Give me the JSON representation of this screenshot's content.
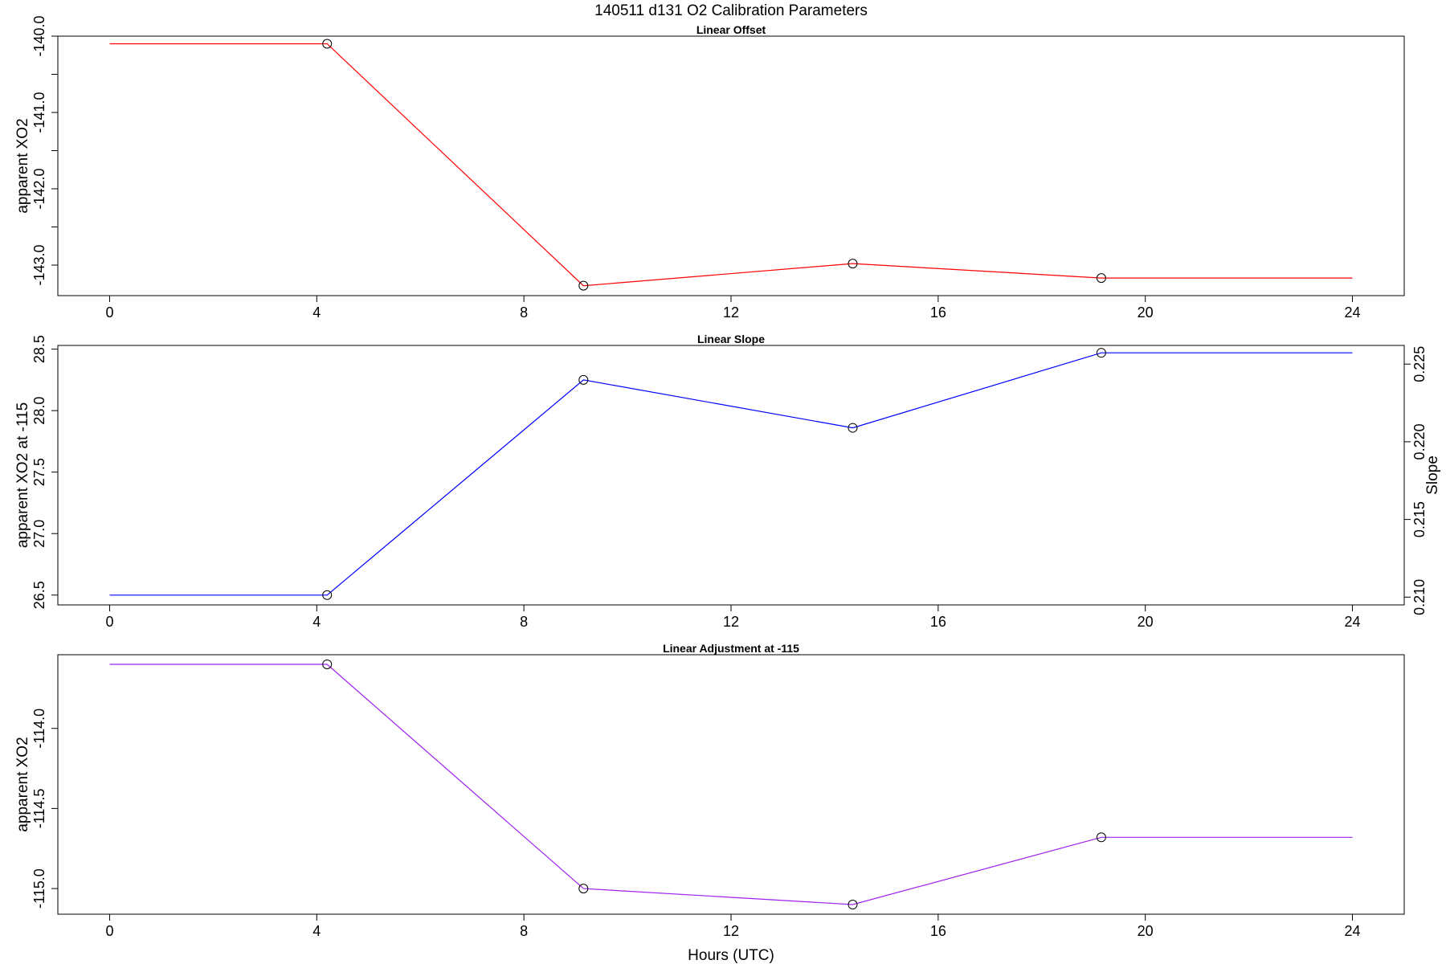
{
  "chart_data": {
    "title": "140511   d131   O2 Calibration Parameters",
    "xlabel": "Hours (UTC)",
    "xlim": [
      -1.0,
      25.0
    ],
    "xticks": [
      0,
      4,
      8,
      12,
      16,
      20,
      24
    ],
    "panels": [
      {
        "type": "line",
        "title": "Linear Offset",
        "ylabel": "apparent XO2",
        "ylim": [
          -143.4,
          -140.0
        ],
        "yticks": [
          -143.0,
          -142.5,
          -142.0,
          -141.5,
          -141.0,
          -140.5,
          -140.0
        ],
        "ytick_labels": [
          "-143.0",
          "",
          "-142.0",
          "",
          "-141.0",
          "",
          "-140.0"
        ],
        "color": "#ff0000",
        "series": [
          {
            "x": [
              0,
              4.2,
              9.15,
              14.35,
              19.15,
              24
            ],
            "y": [
              -140.1,
              -140.1,
              -143.27,
              -142.98,
              -143.17,
              -143.17
            ]
          }
        ],
        "markers_x": [
          4.2,
          9.15,
          14.35,
          19.15
        ]
      },
      {
        "type": "line",
        "title": "Linear Slope",
        "ylabel": "apparent XO2 at -115",
        "ylim": [
          26.42,
          28.53
        ],
        "yticks": [
          26.5,
          27.0,
          27.5,
          28.0,
          28.5
        ],
        "ytick_labels": [
          "26.5",
          "27.0",
          "27.5",
          "28.0",
          "28.5"
        ],
        "y2label": "Slope",
        "y2ticks": [
          0.21,
          0.215,
          0.22,
          0.225
        ],
        "y2tick_labels": [
          "0.210",
          "0.215",
          "0.220",
          "0.225"
        ],
        "color": "#0000ff",
        "series": [
          {
            "x": [
              0,
              4.2,
              9.15,
              14.35,
              19.15,
              24
            ],
            "y": [
              26.5,
              26.5,
              28.25,
              27.86,
              28.47,
              28.47
            ]
          }
        ],
        "markers_x": [
          4.2,
          9.15,
          14.35,
          19.15
        ]
      },
      {
        "type": "line",
        "title": "Linear Adjustment at -115",
        "ylabel": "apparent XO2",
        "ylim": [
          -115.16,
          -113.54
        ],
        "yticks": [
          -115.0,
          -114.5,
          -114.0
        ],
        "ytick_labels": [
          "-115.0",
          "-114.5",
          "-114.0"
        ],
        "color": "#a020f0",
        "series": [
          {
            "x": [
              0,
              4.2,
              9.15,
              14.35,
              19.15,
              24
            ],
            "y": [
              -113.6,
              -113.6,
              -115.0,
              -115.1,
              -114.68,
              -114.68
            ]
          }
        ],
        "markers_x": [
          4.2,
          9.15,
          14.35,
          19.15
        ]
      }
    ]
  }
}
